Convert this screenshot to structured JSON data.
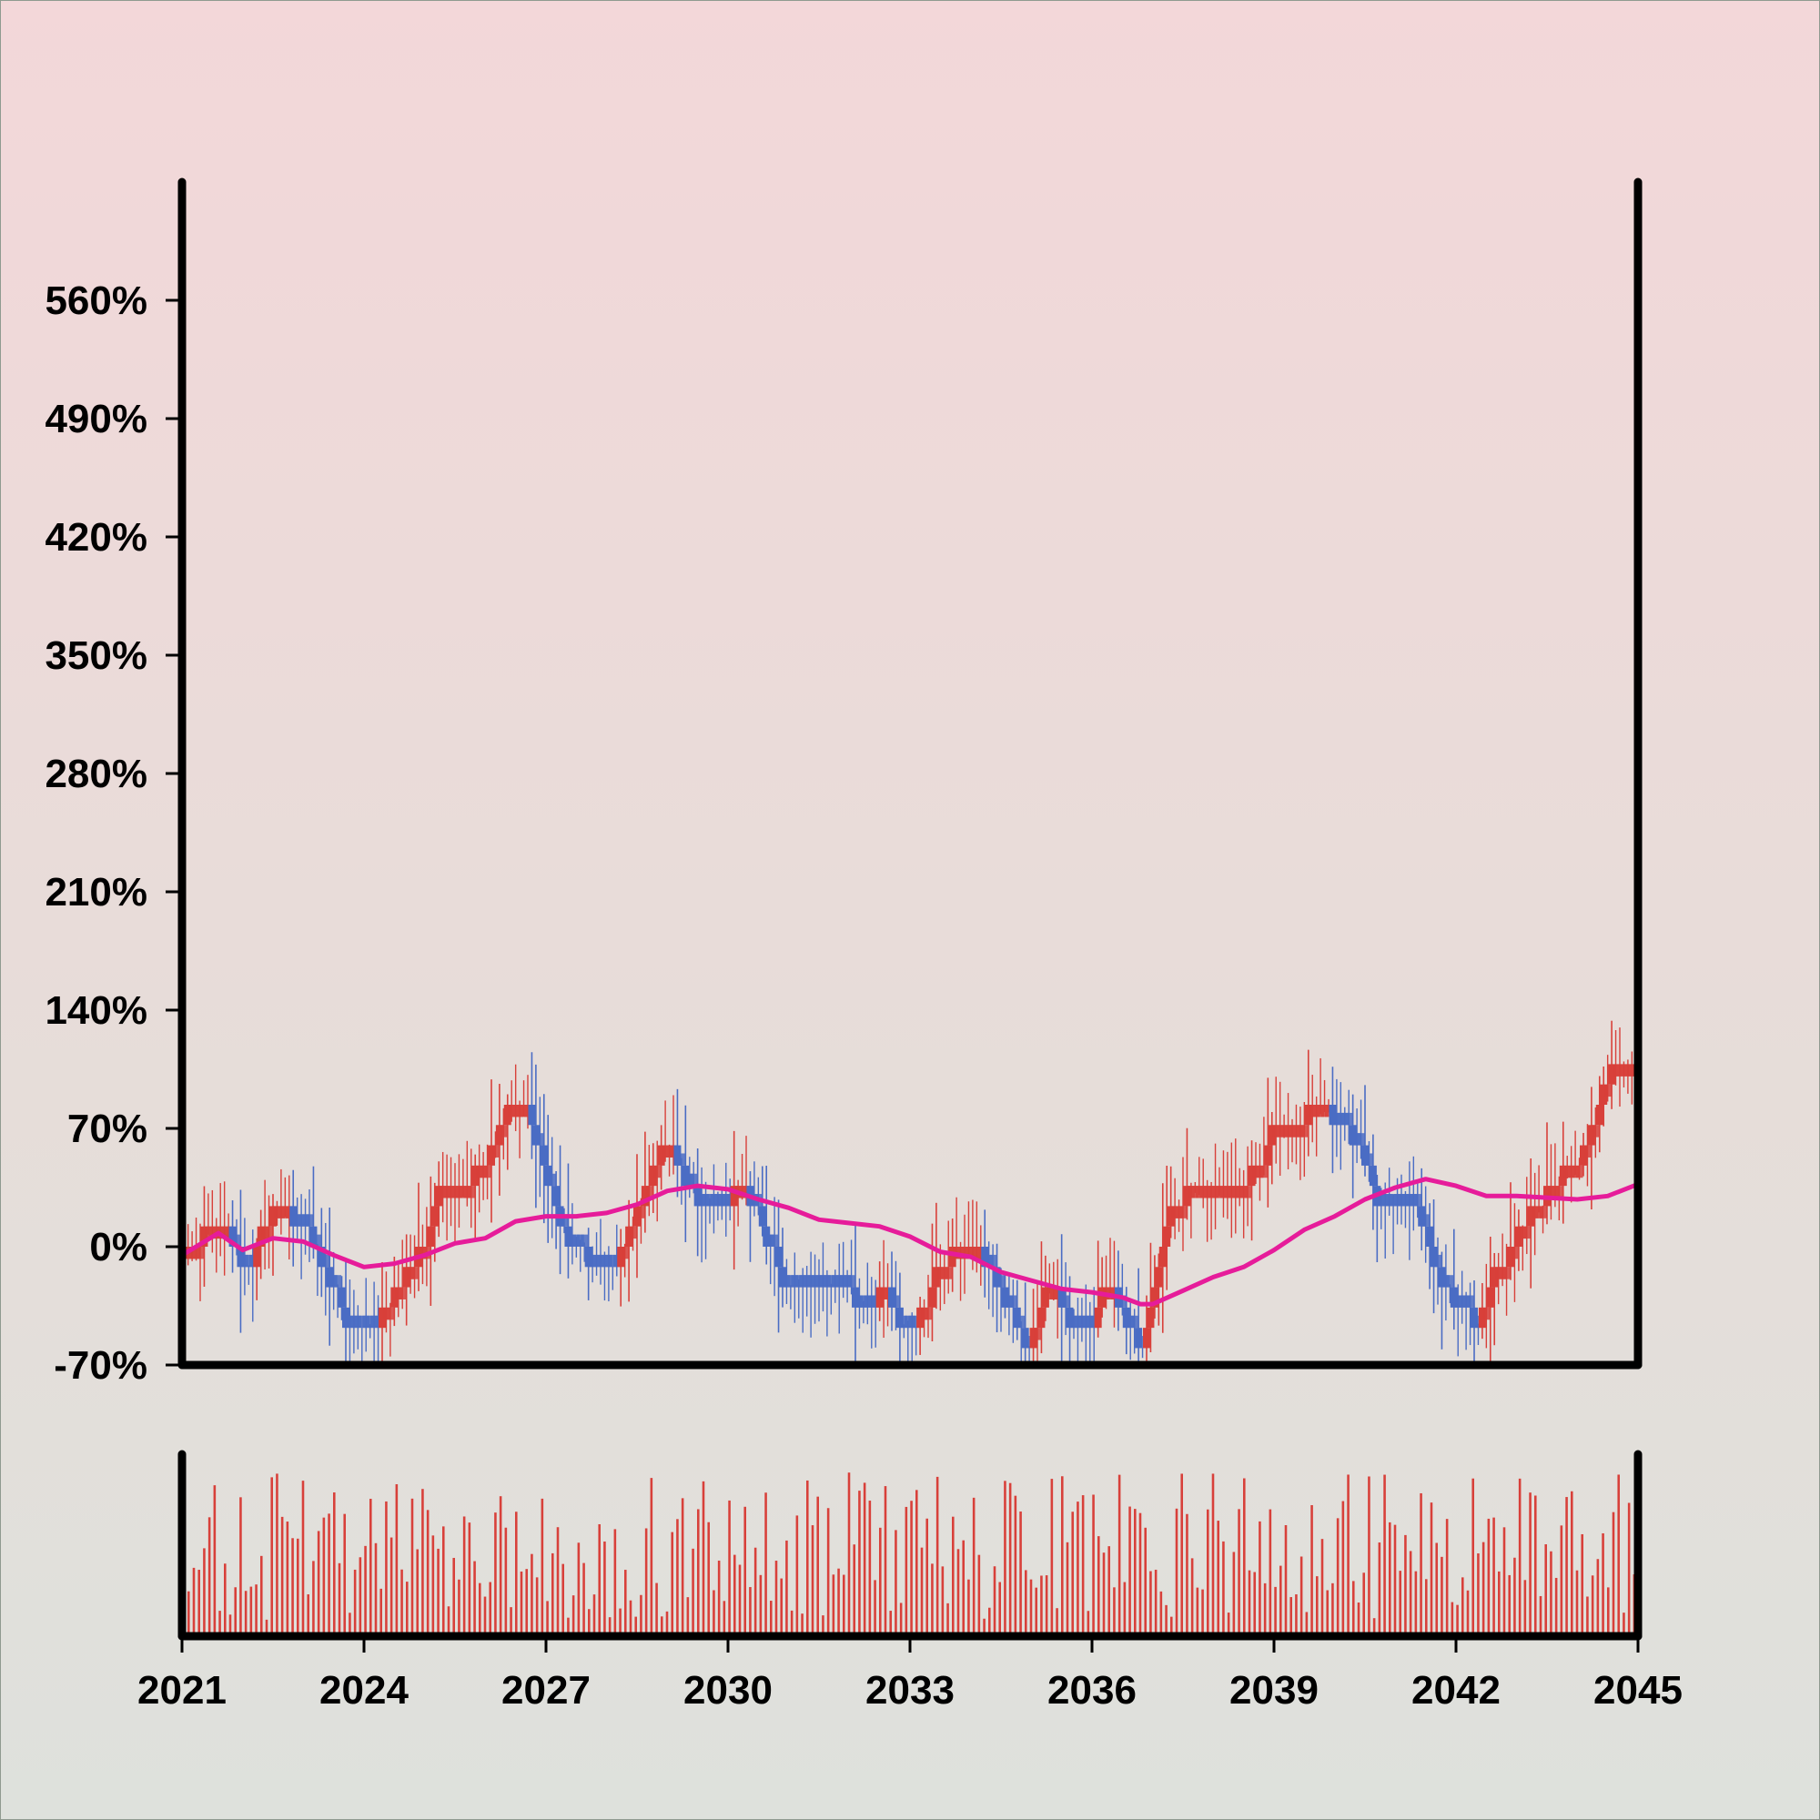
{
  "colors": {
    "up": "#d8403a",
    "down": "#4a6cc4",
    "ma_line": "#e61c9a",
    "volume": "#d8403a",
    "axis": "#000000"
  },
  "chart_data": {
    "type": "candlestick",
    "x_start_year": 2021,
    "x_end_year": 2045,
    "xticks": [
      "2021",
      "2024",
      "2027",
      "2030",
      "2033",
      "2036",
      "2039",
      "2042",
      "2045"
    ],
    "ylim": [
      -70,
      630
    ],
    "yticks": [
      "-70%",
      "0%",
      "70%",
      "140%",
      "210%",
      "280%",
      "350%",
      "420%",
      "490%",
      "560%"
    ],
    "ytick_values": [
      -70,
      0,
      70,
      140,
      210,
      280,
      350,
      420,
      490,
      560
    ],
    "brick_size_pct": 12,
    "price_path_pct": [
      [
        2021.0,
        0
      ],
      [
        2021.3,
        8
      ],
      [
        2021.6,
        20
      ],
      [
        2022.0,
        -20
      ],
      [
        2022.3,
        22
      ],
      [
        2022.7,
        18
      ],
      [
        2023.0,
        8
      ],
      [
        2023.3,
        -10
      ],
      [
        2023.7,
        -50
      ],
      [
        2024.0,
        -60
      ],
      [
        2024.3,
        -35
      ],
      [
        2024.7,
        -15
      ],
      [
        2025.0,
        10
      ],
      [
        2025.3,
        45
      ],
      [
        2025.7,
        32
      ],
      [
        2026.0,
        58
      ],
      [
        2026.5,
        98
      ],
      [
        2026.7,
        80
      ],
      [
        2027.0,
        40
      ],
      [
        2027.3,
        0
      ],
      [
        2027.7,
        -10
      ],
      [
        2028.0,
        -15
      ],
      [
        2028.4,
        15
      ],
      [
        2028.7,
        45
      ],
      [
        2029.0,
        72
      ],
      [
        2029.3,
        30
      ],
      [
        2029.6,
        15
      ],
      [
        2030.0,
        40
      ],
      [
        2030.3,
        30
      ],
      [
        2030.7,
        -10
      ],
      [
        2031.0,
        -30
      ],
      [
        2031.5,
        -20
      ],
      [
        2031.8,
        -20
      ],
      [
        2032.1,
        -40
      ],
      [
        2032.5,
        -20
      ],
      [
        2032.9,
        -55
      ],
      [
        2033.2,
        -30
      ],
      [
        2033.6,
        0
      ],
      [
        2033.9,
        0
      ],
      [
        2034.2,
        -10
      ],
      [
        2034.6,
        -45
      ],
      [
        2034.9,
        -60
      ],
      [
        2035.2,
        -25
      ],
      [
        2035.6,
        -45
      ],
      [
        2035.9,
        -60
      ],
      [
        2036.2,
        -15
      ],
      [
        2036.6,
        -55
      ],
      [
        2036.8,
        -65
      ],
      [
        2036.9,
        -10
      ],
      [
        2037.3,
        30
      ],
      [
        2037.6,
        35
      ],
      [
        2038.0,
        35
      ],
      [
        2038.4,
        25
      ],
      [
        2038.8,
        60
      ],
      [
        2039.0,
        80
      ],
      [
        2039.3,
        75
      ],
      [
        2039.6,
        85
      ],
      [
        2039.9,
        70
      ],
      [
        2040.2,
        65
      ],
      [
        2040.5,
        45
      ],
      [
        2040.8,
        10
      ],
      [
        2041.1,
        25
      ],
      [
        2041.4,
        20
      ],
      [
        2041.7,
        -25
      ],
      [
        2042.0,
        -35
      ],
      [
        2042.3,
        -45
      ],
      [
        2042.6,
        -15
      ],
      [
        2042.9,
        0
      ],
      [
        2043.2,
        20
      ],
      [
        2043.5,
        40
      ],
      [
        2043.8,
        55
      ],
      [
        2044.1,
        60
      ],
      [
        2044.4,
        95
      ],
      [
        2044.6,
        120
      ],
      [
        2044.8,
        100
      ],
      [
        2045.0,
        115
      ]
    ],
    "moving_average_pct": [
      [
        2021.0,
        -5
      ],
      [
        2021.6,
        8
      ],
      [
        2022.0,
        -2
      ],
      [
        2022.5,
        5
      ],
      [
        2023.0,
        3
      ],
      [
        2023.5,
        -5
      ],
      [
        2024.0,
        -12
      ],
      [
        2024.5,
        -10
      ],
      [
        2025.0,
        -5
      ],
      [
        2025.5,
        2
      ],
      [
        2026.0,
        5
      ],
      [
        2026.5,
        15
      ],
      [
        2027.0,
        18
      ],
      [
        2027.5,
        18
      ],
      [
        2028.0,
        20
      ],
      [
        2028.5,
        25
      ],
      [
        2029.0,
        33
      ],
      [
        2029.5,
        36
      ],
      [
        2030.0,
        34
      ],
      [
        2030.5,
        28
      ],
      [
        2031.0,
        23
      ],
      [
        2031.5,
        16
      ],
      [
        2032.0,
        14
      ],
      [
        2032.5,
        12
      ],
      [
        2033.0,
        6
      ],
      [
        2033.5,
        -3
      ],
      [
        2034.0,
        -6
      ],
      [
        2034.5,
        -15
      ],
      [
        2035.0,
        -20
      ],
      [
        2035.5,
        -25
      ],
      [
        2036.0,
        -27
      ],
      [
        2036.5,
        -30
      ],
      [
        2036.8,
        -34
      ],
      [
        2037.0,
        -34
      ],
      [
        2037.5,
        -26
      ],
      [
        2038.0,
        -18
      ],
      [
        2038.5,
        -12
      ],
      [
        2039.0,
        -2
      ],
      [
        2039.5,
        10
      ],
      [
        2040.0,
        18
      ],
      [
        2040.5,
        28
      ],
      [
        2041.0,
        35
      ],
      [
        2041.5,
        40
      ],
      [
        2042.0,
        36
      ],
      [
        2042.5,
        30
      ],
      [
        2043.0,
        30
      ],
      [
        2043.5,
        29
      ],
      [
        2044.0,
        28
      ],
      [
        2044.5,
        30
      ],
      [
        2045.0,
        37
      ]
    ],
    "volume_bar_count": 280
  }
}
